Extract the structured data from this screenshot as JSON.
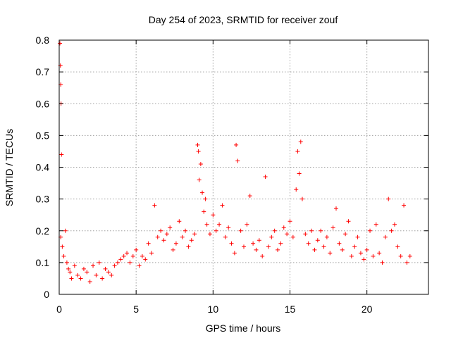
{
  "chart_data": {
    "type": "scatter",
    "title": "Day 254 of 2023, SRMTID for receiver zouf",
    "xlabel": "GPS time / hours",
    "ylabel": "SRMTID / TECUs",
    "xlim": [
      0,
      24
    ],
    "ylim": [
      0,
      0.8
    ],
    "xticks": [
      0,
      5,
      10,
      15,
      20
    ],
    "yticks": [
      0,
      0.1,
      0.2,
      0.3,
      0.4,
      0.5,
      0.6,
      0.7,
      0.8
    ],
    "xtick_labels": [
      "0",
      "5",
      "10",
      "15",
      "20"
    ],
    "ytick_labels": [
      "0",
      "0.1",
      "0.2",
      "0.3",
      "0.4",
      "0.5",
      "0.6",
      "0.7",
      "0.8"
    ],
    "grid": true,
    "marker": "plus",
    "color": "#ff0000",
    "series": [
      {
        "name": "SRMTID",
        "x": [
          0.05,
          0.08,
          0.1,
          0.12,
          0.15,
          0.1,
          0.2,
          0.3,
          0.4,
          0.5,
          0.6,
          0.7,
          0.8,
          1.0,
          1.2,
          1.4,
          1.6,
          1.8,
          2.0,
          2.2,
          2.4,
          2.6,
          2.8,
          3.0,
          3.2,
          3.4,
          3.6,
          3.8,
          4.0,
          4.2,
          4.4,
          4.6,
          4.8,
          5.0,
          5.2,
          5.4,
          5.6,
          5.8,
          6.0,
          6.2,
          6.4,
          6.6,
          6.8,
          7.0,
          7.2,
          7.4,
          7.6,
          7.8,
          8.0,
          8.2,
          8.4,
          8.6,
          8.8,
          9.0,
          9.05,
          9.1,
          9.2,
          9.3,
          9.4,
          9.5,
          9.6,
          9.8,
          10.0,
          10.2,
          10.4,
          10.6,
          10.8,
          11.0,
          11.2,
          11.4,
          11.5,
          11.6,
          11.8,
          12.0,
          12.2,
          12.4,
          12.6,
          12.8,
          13.0,
          13.2,
          13.4,
          13.6,
          13.8,
          14.0,
          14.2,
          14.4,
          14.6,
          14.8,
          15.0,
          15.2,
          15.4,
          15.5,
          15.6,
          15.7,
          15.8,
          16.0,
          16.2,
          16.4,
          16.6,
          16.8,
          17.0,
          17.2,
          17.4,
          17.6,
          17.8,
          18.0,
          18.2,
          18.4,
          18.6,
          18.8,
          19.0,
          19.2,
          19.4,
          19.6,
          19.8,
          20.0,
          20.2,
          20.4,
          20.6,
          20.8,
          21.0,
          21.2,
          21.4,
          21.6,
          21.8,
          22.0,
          22.2,
          22.4,
          22.6,
          22.8
        ],
        "y": [
          0.79,
          0.72,
          0.66,
          0.6,
          0.44,
          0.18,
          0.15,
          0.12,
          0.2,
          0.1,
          0.08,
          0.07,
          0.05,
          0.09,
          0.06,
          0.05,
          0.08,
          0.07,
          0.04,
          0.09,
          0.06,
          0.1,
          0.05,
          0.08,
          0.07,
          0.06,
          0.09,
          0.1,
          0.11,
          0.12,
          0.13,
          0.1,
          0.12,
          0.14,
          0.09,
          0.12,
          0.11,
          0.16,
          0.13,
          0.28,
          0.18,
          0.2,
          0.17,
          0.19,
          0.21,
          0.14,
          0.16,
          0.23,
          0.18,
          0.2,
          0.15,
          0.17,
          0.19,
          0.47,
          0.45,
          0.36,
          0.41,
          0.32,
          0.26,
          0.3,
          0.22,
          0.19,
          0.25,
          0.2,
          0.22,
          0.28,
          0.18,
          0.21,
          0.16,
          0.13,
          0.47,
          0.42,
          0.2,
          0.15,
          0.22,
          0.31,
          0.16,
          0.14,
          0.17,
          0.12,
          0.37,
          0.15,
          0.18,
          0.2,
          0.14,
          0.16,
          0.21,
          0.19,
          0.23,
          0.18,
          0.33,
          0.45,
          0.38,
          0.48,
          0.3,
          0.19,
          0.16,
          0.2,
          0.14,
          0.17,
          0.2,
          0.15,
          0.18,
          0.13,
          0.21,
          0.27,
          0.16,
          0.14,
          0.19,
          0.23,
          0.12,
          0.15,
          0.18,
          0.13,
          0.11,
          0.14,
          0.2,
          0.12,
          0.22,
          0.13,
          0.1,
          0.18,
          0.3,
          0.2,
          0.22,
          0.15,
          0.12,
          0.28,
          0.1,
          0.12
        ]
      }
    ]
  }
}
